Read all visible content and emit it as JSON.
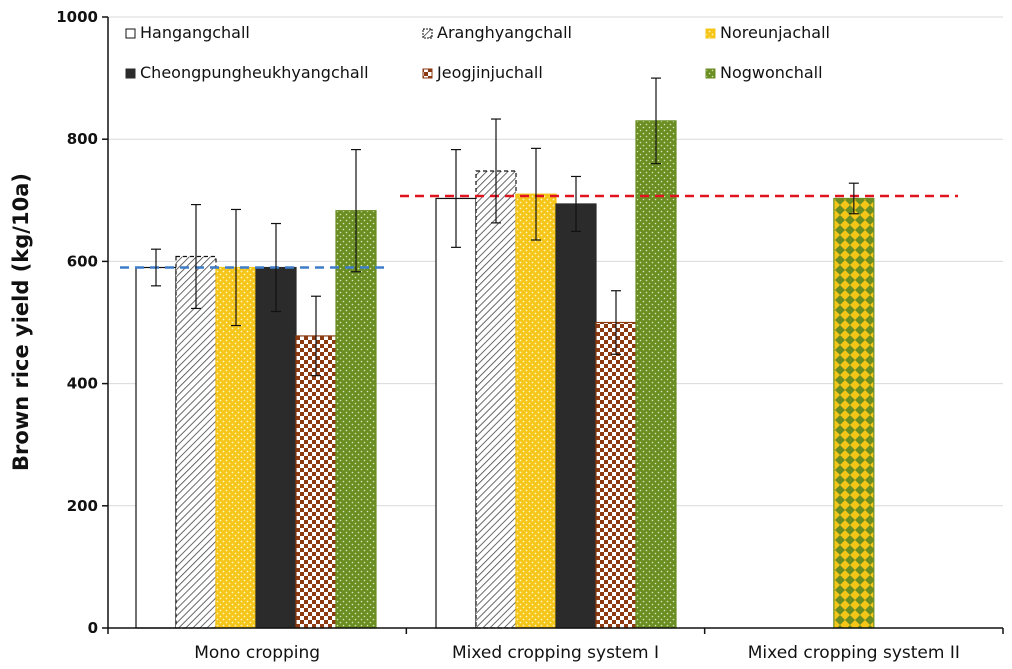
{
  "chart_data": {
    "type": "bar",
    "title": "",
    "xlabel": "",
    "ylabel": "Brown rice yield (kg/10a)",
    "ylim": [
      0,
      1000
    ],
    "yticks": [
      0,
      200,
      400,
      600,
      800,
      1000
    ],
    "grid": true,
    "legend_position": "top",
    "categories": [
      "Mono cropping",
      "Mixed cropping system I",
      "Mixed cropping system II"
    ],
    "series": [
      {
        "name": "Hangangchall",
        "values": [
          590,
          703,
          null
        ],
        "errors": [
          30,
          80,
          null
        ],
        "color": "#ffffff",
        "pattern": "none"
      },
      {
        "name": "Aranghyangchall",
        "values": [
          608,
          748,
          null
        ],
        "errors": [
          85,
          85,
          null
        ],
        "color": "#ffffff",
        "pattern": "diagonal-stripes"
      },
      {
        "name": "Noreunjachall",
        "values": [
          590,
          710,
          null
        ],
        "errors": [
          95,
          75,
          null
        ],
        "color": "#f5c518",
        "pattern": "dots"
      },
      {
        "name": "Cheongpungheukhyangchall",
        "values": [
          590,
          694,
          null
        ],
        "errors": [
          72,
          45,
          null
        ],
        "color": "#2b2b2b",
        "pattern": "none"
      },
      {
        "name": "Jeogjinjuchall",
        "values": [
          478,
          500,
          null
        ],
        "errors": [
          65,
          52,
          null
        ],
        "color": "#8b3a12",
        "pattern": "checker"
      },
      {
        "name": "Nogwonchall",
        "values": [
          683,
          830,
          null
        ],
        "errors": [
          100,
          70,
          null
        ],
        "color": "#6b8e23",
        "pattern": "dots"
      }
    ],
    "mixture": {
      "category": "Mixed cropping system II",
      "value": 703,
      "error": 25,
      "colors": [
        "#f5c518",
        "#6b8e23"
      ],
      "pattern": "diamond-checker"
    },
    "reference_lines": [
      {
        "value": 590,
        "color": "#3d7cc9",
        "span": "Mono cropping"
      },
      {
        "value": 707,
        "color": "#e0141e",
        "span": "Mixed cropping system I to Mixed cropping system II"
      }
    ]
  }
}
